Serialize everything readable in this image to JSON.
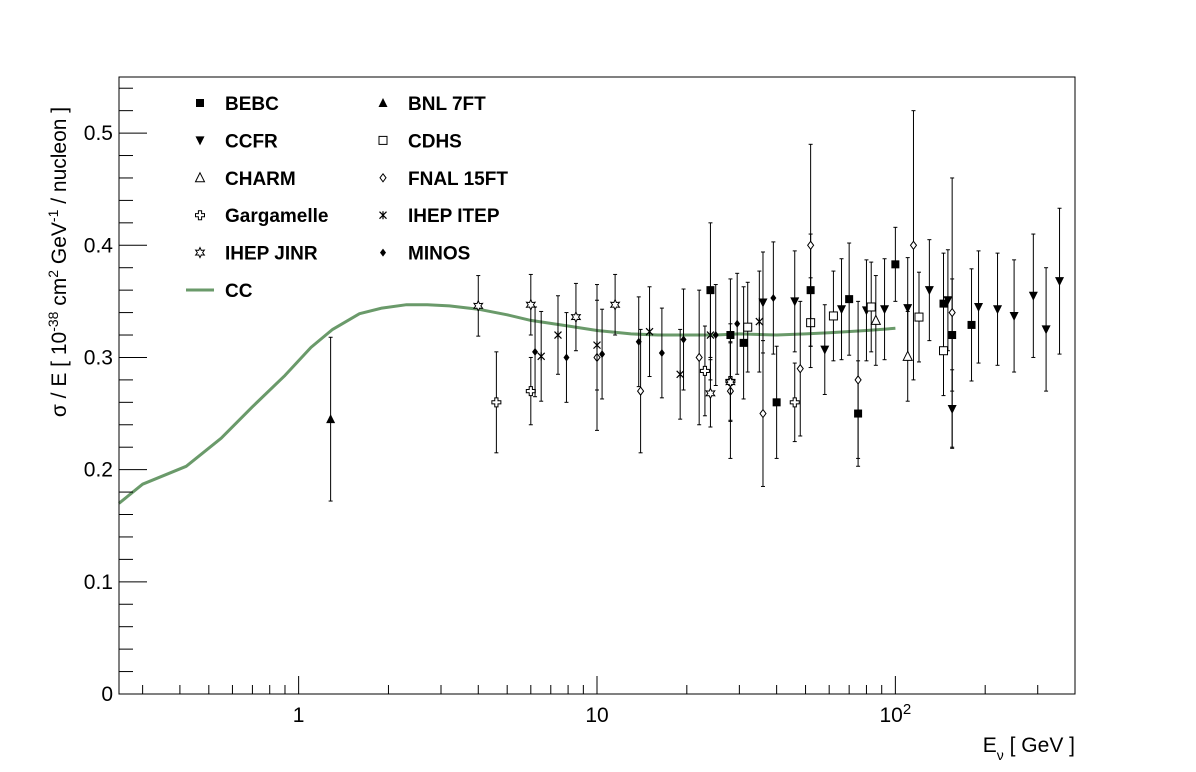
{
  "chart_data": {
    "type": "scatter",
    "xscale": "log",
    "xlim": [
      0.25,
      400
    ],
    "ylim": [
      0,
      0.55
    ],
    "ylabel": {
      "t1": "σ / E  [ 10",
      "s1": "-38",
      "t2": " cm",
      "s2": "2",
      "t3": " GeV",
      "s3": "-1",
      "t4": " / nucleon ]"
    },
    "xlabel": {
      "t1": "E",
      "sub": "ν",
      "t2": "  [ GeV ]"
    },
    "x_ticks": [
      {
        "value": 1,
        "label": "1"
      },
      {
        "value": 10,
        "label": "10"
      },
      {
        "value": 100,
        "label": "10",
        "sup": "2"
      }
    ],
    "y_ticks": [
      {
        "value": 0,
        "label": "0"
      },
      {
        "value": 0.1,
        "label": "0.1"
      },
      {
        "value": 0.2,
        "label": "0.2"
      },
      {
        "value": 0.3,
        "label": "0.3"
      },
      {
        "value": 0.4,
        "label": "0.4"
      },
      {
        "value": 0.5,
        "label": "0.5"
      }
    ],
    "grid": false,
    "legend_position": "top-left",
    "curve": {
      "name": "CC",
      "color": "#6a9a6a",
      "x": [
        0.25,
        0.3,
        0.42,
        0.55,
        0.7,
        0.9,
        1.1,
        1.3,
        1.6,
        1.9,
        2.3,
        2.7,
        3.2,
        4,
        5,
        6,
        8,
        10,
        13,
        16,
        20,
        25,
        30,
        40,
        50,
        60,
        80,
        100
      ],
      "y": [
        0.17,
        0.187,
        0.203,
        0.228,
        0.256,
        0.284,
        0.309,
        0.325,
        0.339,
        0.344,
        0.347,
        0.347,
        0.346,
        0.343,
        0.338,
        0.333,
        0.328,
        0.324,
        0.321,
        0.32,
        0.32,
        0.32,
        0.321,
        0.32,
        0.321,
        0.322,
        0.324,
        0.326
      ]
    },
    "series": [
      {
        "name": "BEBC",
        "marker": "square-filled",
        "points": [
          [
            24,
            0.36,
            0.06
          ],
          [
            28,
            0.32,
            0.05
          ],
          [
            31,
            0.313,
            0.05
          ],
          [
            40,
            0.26,
            0.05
          ],
          [
            52,
            0.36,
            0.05
          ],
          [
            70,
            0.352,
            0.05
          ],
          [
            75,
            0.25,
            0.047
          ],
          [
            100,
            0.383,
            0.033
          ],
          [
            145,
            0.348,
            0.045
          ],
          [
            155,
            0.32,
            0.05
          ],
          [
            180,
            0.329,
            0.05
          ]
        ]
      },
      {
        "name": "BNL 7FT",
        "marker": "triangle-up-filled",
        "points": [
          [
            1.28,
            0.245,
            0.073
          ]
        ]
      },
      {
        "name": "CCFR",
        "marker": "triangle-down-filled",
        "points": [
          [
            36,
            0.349,
            0.045
          ],
          [
            46,
            0.35,
            0.045
          ],
          [
            58,
            0.307,
            0.04
          ],
          [
            66,
            0.343,
            0.045
          ],
          [
            80,
            0.342,
            0.045
          ],
          [
            92,
            0.343,
            0.045
          ],
          [
            110,
            0.344,
            0.045
          ],
          [
            130,
            0.36,
            0.045
          ],
          [
            150,
            0.351,
            0.045
          ],
          [
            155,
            0.254,
            0.035
          ],
          [
            190,
            0.345,
            0.05
          ],
          [
            220,
            0.343,
            0.05
          ],
          [
            250,
            0.337,
            0.05
          ],
          [
            290,
            0.355,
            0.055
          ],
          [
            320,
            0.325,
            0.055
          ],
          [
            355,
            0.368,
            0.065
          ]
        ]
      },
      {
        "name": "CDHS",
        "marker": "square-open",
        "points": [
          [
            32,
            0.327,
            0.04
          ],
          [
            52,
            0.331,
            0.04
          ],
          [
            62,
            0.337,
            0.04
          ],
          [
            83,
            0.345,
            0.04
          ],
          [
            120,
            0.336,
            0.04
          ],
          [
            145,
            0.306,
            0.04
          ]
        ]
      },
      {
        "name": "CHARM",
        "marker": "triangle-up-open",
        "points": [
          [
            86,
            0.333,
            0.04
          ],
          [
            110,
            0.301,
            0.04
          ]
        ]
      },
      {
        "name": "FNAL 15FT",
        "marker": "diamond-open",
        "points": [
          [
            10,
            0.3,
            0.065
          ],
          [
            14,
            0.27,
            0.055
          ],
          [
            22,
            0.3,
            0.06
          ],
          [
            28,
            0.27,
            0.06
          ],
          [
            36,
            0.25,
            0.065
          ],
          [
            48,
            0.29,
            0.06
          ],
          [
            52,
            0.4,
            0.09
          ],
          [
            75,
            0.28,
            0.07
          ],
          [
            115,
            0.4,
            0.12
          ],
          [
            155,
            0.34,
            0.12
          ]
        ]
      },
      {
        "name": "Gargamelle",
        "marker": "cross-open",
        "points": [
          [
            4.6,
            0.26,
            0.045
          ],
          [
            6,
            0.27,
            0.03
          ],
          [
            23,
            0.288,
            0.04
          ],
          [
            28,
            0.279,
            0.035
          ],
          [
            46,
            0.26,
            0.035
          ]
        ]
      },
      {
        "name": "IHEP ITEP",
        "marker": "star",
        "points": [
          [
            6.5,
            0.301,
            0.04
          ],
          [
            7.4,
            0.32,
            0.035
          ],
          [
            10,
            0.311,
            0.04
          ],
          [
            15,
            0.323,
            0.04
          ],
          [
            19,
            0.285,
            0.04
          ],
          [
            24,
            0.32,
            0.04
          ],
          [
            35,
            0.332,
            0.045
          ]
        ]
      },
      {
        "name": "IHEP JINR",
        "marker": "star-open",
        "points": [
          [
            4,
            0.346,
            0.027
          ],
          [
            6,
            0.347,
            0.027
          ],
          [
            8.5,
            0.336,
            0.03
          ],
          [
            11.5,
            0.347,
            0.027
          ],
          [
            24,
            0.268,
            0.03
          ],
          [
            28,
            0.278,
            0.035
          ]
        ]
      },
      {
        "name": "MINOS",
        "marker": "diamond-filled",
        "points": [
          [
            6.2,
            0.305,
            0.04
          ],
          [
            7.9,
            0.3,
            0.04
          ],
          [
            10.4,
            0.303,
            0.04
          ],
          [
            13.8,
            0.314,
            0.04
          ],
          [
            16.5,
            0.304,
            0.04
          ],
          [
            19.5,
            0.316,
            0.045
          ],
          [
            25,
            0.32,
            0.045
          ],
          [
            29.5,
            0.33,
            0.045
          ],
          [
            39,
            0.353,
            0.05
          ]
        ]
      }
    ],
    "legend": [
      {
        "name": "BEBC",
        "marker": "square-filled",
        "col": 0,
        "row": 0
      },
      {
        "name": "CCFR",
        "marker": "triangle-down-filled",
        "col": 0,
        "row": 1
      },
      {
        "name": "CHARM",
        "marker": "triangle-up-open",
        "col": 0,
        "row": 2
      },
      {
        "name": "Gargamelle",
        "marker": "cross-open",
        "col": 0,
        "row": 3
      },
      {
        "name": "IHEP JINR",
        "marker": "star-open",
        "col": 0,
        "row": 4
      },
      {
        "name": "CC",
        "marker": "line",
        "col": 0,
        "row": 5
      },
      {
        "name": "BNL 7FT",
        "marker": "triangle-up-filled",
        "col": 1,
        "row": 0
      },
      {
        "name": "CDHS",
        "marker": "square-open",
        "col": 1,
        "row": 1
      },
      {
        "name": "FNAL 15FT",
        "marker": "diamond-open",
        "col": 1,
        "row": 2
      },
      {
        "name": "IHEP ITEP",
        "marker": "star",
        "col": 1,
        "row": 3
      },
      {
        "name": "MINOS",
        "marker": "diamond-filled",
        "col": 1,
        "row": 4
      }
    ]
  }
}
